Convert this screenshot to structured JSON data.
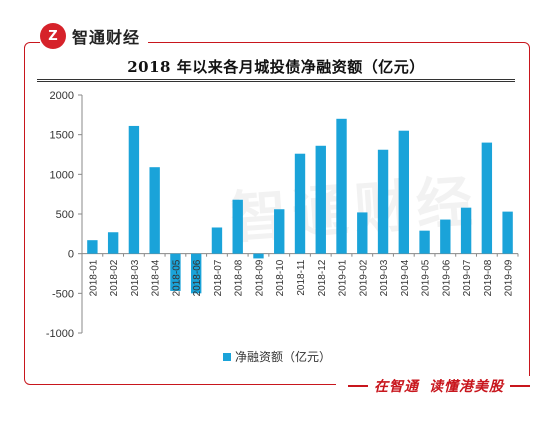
{
  "header": {
    "logo_text": "Z",
    "brand": "智通财经"
  },
  "watermark": "智通财经",
  "footer": {
    "slogan_part1": "在智通",
    "slogan_part2": "读懂港美股"
  },
  "colors": {
    "bar": "#1aa3d9",
    "accent": "#c8161d"
  },
  "chart_data": {
    "type": "bar",
    "title": "2018 年以来各月城投债净融资额（亿元）",
    "categories": [
      "2018-01",
      "2018-02",
      "2018-03",
      "2018-04",
      "2018-05",
      "2018-06",
      "2018-07",
      "2018-08",
      "2018-09",
      "2018-10",
      "2018-11",
      "2018-12",
      "2019-01",
      "2019-02",
      "2019-03",
      "2019-04",
      "2019-05",
      "2019-06",
      "2019-07",
      "2019-08",
      "2019-09"
    ],
    "series": [
      {
        "name": "净融资额（亿元）",
        "values": [
          170,
          270,
          1610,
          1090,
          -470,
          -500,
          330,
          680,
          -60,
          560,
          1260,
          1360,
          1700,
          520,
          1310,
          1550,
          290,
          430,
          580,
          1400,
          530
        ]
      }
    ],
    "ylim": [
      -1000,
      2000
    ],
    "yticks": [
      -1000,
      -500,
      0,
      500,
      1000,
      1500,
      2000
    ],
    "grid": false,
    "legend": "bottom"
  }
}
